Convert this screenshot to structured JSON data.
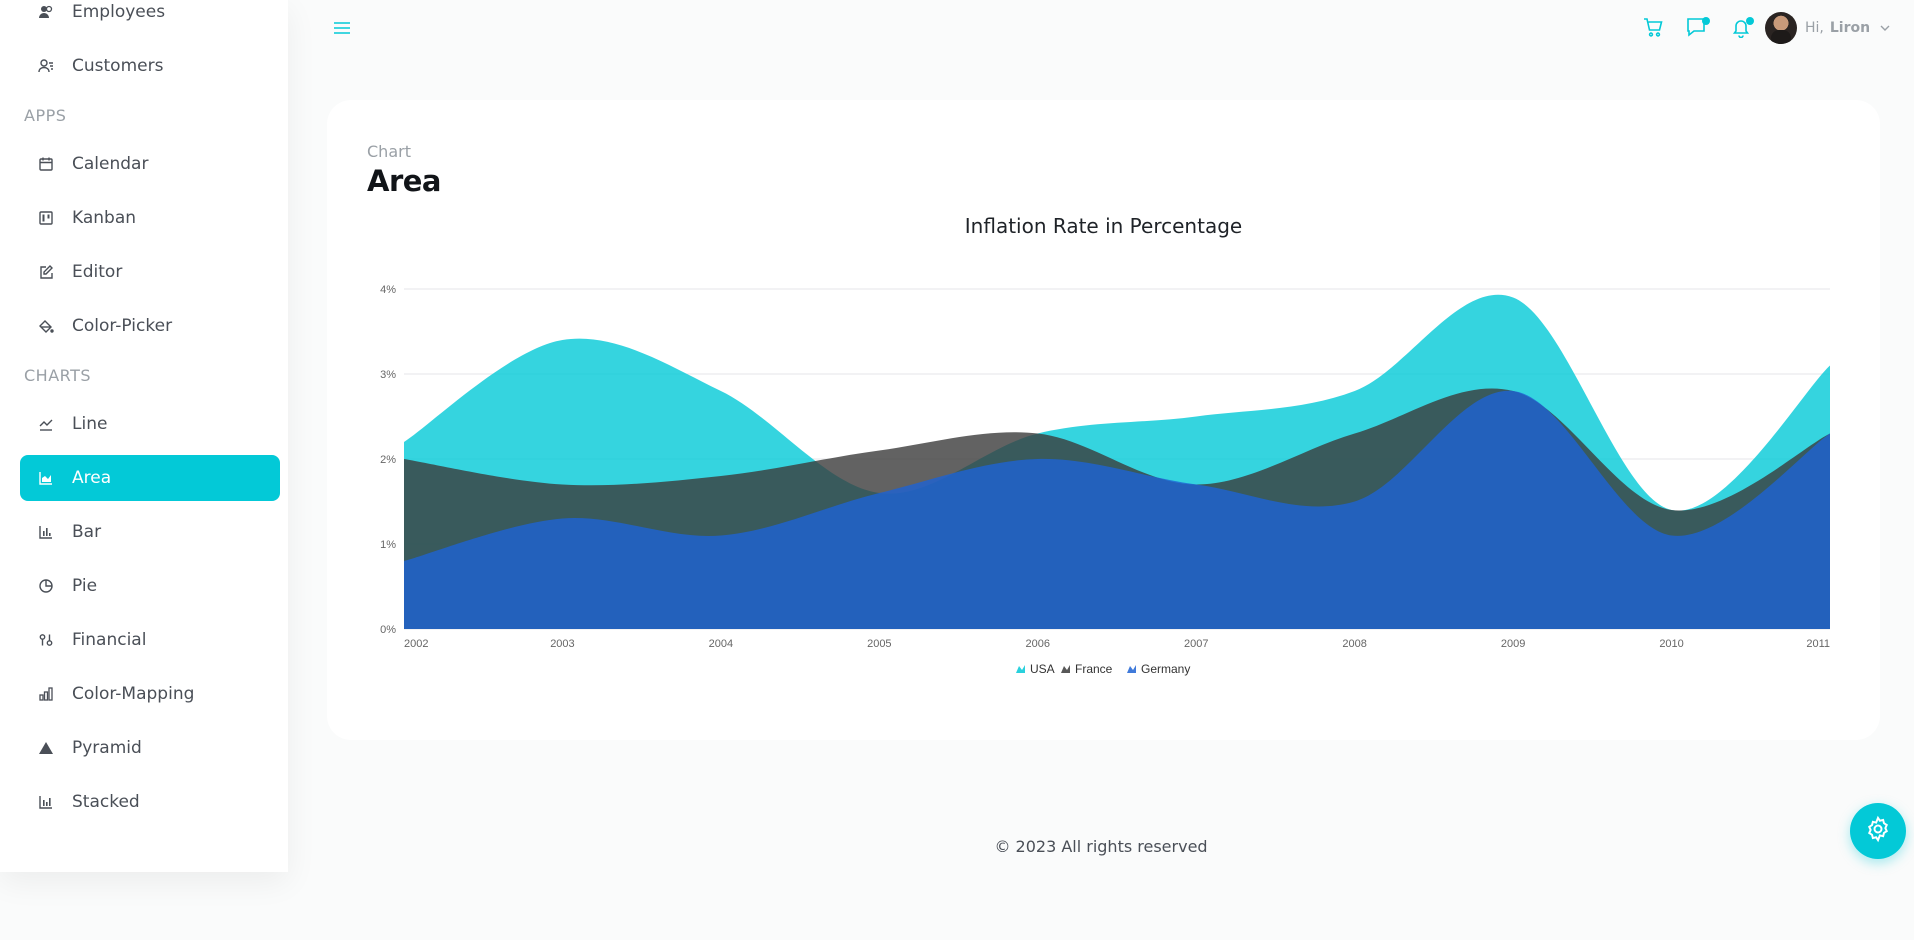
{
  "sidebar": {
    "items_top": [
      {
        "label": "Employees",
        "icon": "employees-icon"
      },
      {
        "label": "Customers",
        "icon": "customers-icon"
      }
    ],
    "apps_heading": "APPS",
    "apps": [
      {
        "label": "Calendar",
        "icon": "calendar-icon"
      },
      {
        "label": "Kanban",
        "icon": "kanban-icon"
      },
      {
        "label": "Editor",
        "icon": "editor-icon"
      },
      {
        "label": "Color-Picker",
        "icon": "color-picker-icon"
      }
    ],
    "charts_heading": "CHARTS",
    "charts": [
      {
        "label": "Line",
        "icon": "line-chart-icon"
      },
      {
        "label": "Area",
        "icon": "area-chart-icon",
        "active": true
      },
      {
        "label": "Bar",
        "icon": "bar-chart-icon"
      },
      {
        "label": "Pie",
        "icon": "pie-chart-icon"
      },
      {
        "label": "Financial",
        "icon": "financial-icon"
      },
      {
        "label": "Color-Mapping",
        "icon": "color-mapping-icon"
      },
      {
        "label": "Pyramid",
        "icon": "pyramid-icon"
      },
      {
        "label": "Stacked",
        "icon": "stacked-chart-icon"
      }
    ],
    "accent_color": "#03c9d7"
  },
  "topbar": {
    "greeting": "Hi,",
    "username": "Liron"
  },
  "page": {
    "breadcrumb": "Chart",
    "title": "Area"
  },
  "chart_data": {
    "type": "area",
    "title": "Inflation Rate in Percentage",
    "x": [
      2002,
      2003,
      2004,
      2005,
      2006,
      2007,
      2008,
      2009,
      2010,
      2011
    ],
    "x_tick_labels": [
      "2002",
      "2003",
      "2004",
      "2005",
      "2006",
      "2007",
      "2008",
      "2009",
      "2010",
      "2011"
    ],
    "y_tick_labels": [
      "0%",
      "1%",
      "2%",
      "3%",
      "4%"
    ],
    "ylim": [
      0,
      4
    ],
    "grid": true,
    "legend_position": "bottom",
    "series": [
      {
        "name": "USA",
        "color": "#03c9d7",
        "values": [
          2.2,
          3.4,
          2.8,
          1.6,
          2.3,
          2.5,
          2.8,
          3.9,
          1.4,
          3.1
        ]
      },
      {
        "name": "France",
        "color": "#3b3b3b",
        "values": [
          2.0,
          1.7,
          1.8,
          2.1,
          2.3,
          1.7,
          2.3,
          2.8,
          1.4,
          2.3
        ]
      },
      {
        "name": "Germany",
        "color": "#1e63d4",
        "values": [
          0.8,
          1.3,
          1.1,
          1.6,
          2.0,
          1.7,
          1.5,
          2.8,
          1.1,
          2.3
        ]
      }
    ]
  },
  "footer": {
    "copyright": "© 2023 All rights reserved"
  }
}
